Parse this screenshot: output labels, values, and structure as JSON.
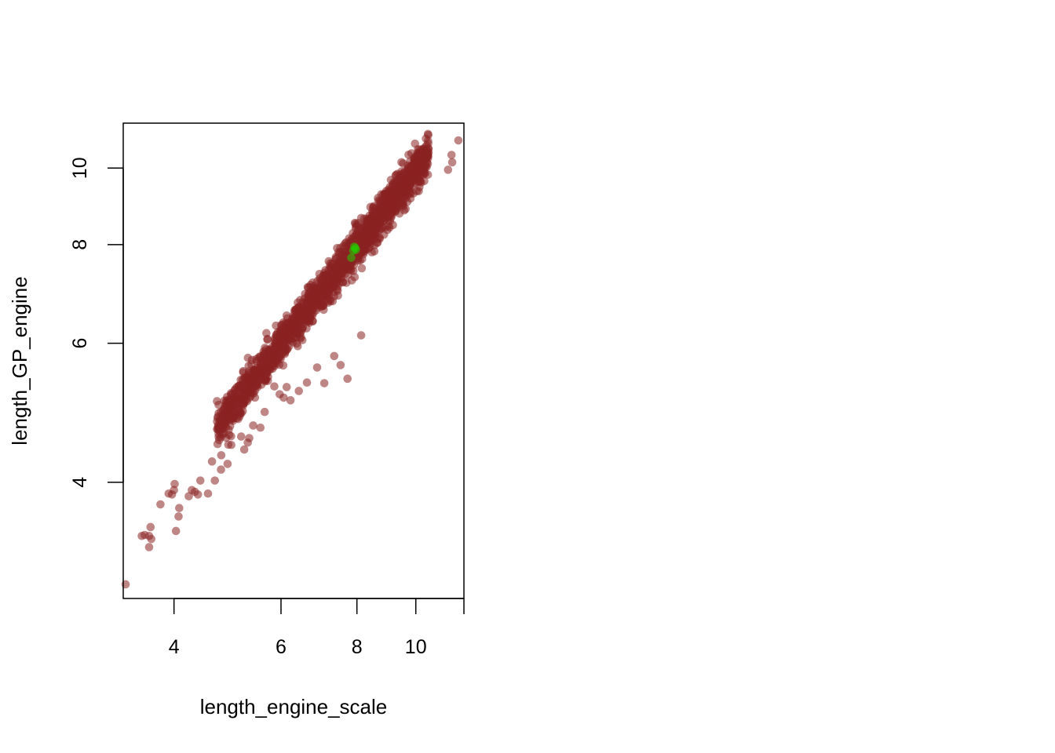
{
  "chart_data": {
    "type": "scatter",
    "title": "",
    "xlabel": "length_engine_scale",
    "ylabel": "length_GP_engine",
    "x_scale": "log",
    "y_scale": "log",
    "xlim": [
      3.3,
      12.0
    ],
    "ylim": [
      2.85,
      11.4
    ],
    "x_ticks": [
      4,
      6,
      8,
      10,
      12
    ],
    "x_tick_labels": [
      "4",
      "6",
      "8",
      "10",
      ""
    ],
    "y_ticks": [
      4,
      6,
      8,
      10
    ],
    "y_tick_labels": [
      "4",
      "6",
      "8",
      "10"
    ],
    "grid": false,
    "legend": "none",
    "colors": {
      "main": "#8b2323",
      "highlight": "#22cc00"
    },
    "cloud": {
      "count": 1800,
      "x_range": [
        4.7,
        10.5
      ],
      "slope": 0.995,
      "offset": 0.005,
      "spread": 0.028
    },
    "series": [
      {
        "color": "#8b2323",
        "x": [
          3.33,
          3.64,
          3.66,
          3.64,
          3.67,
          3.54,
          3.58,
          3.8,
          3.92,
          3.97,
          4.0,
          4.01,
          4.03,
          4.07,
          4.08,
          4.28,
          4.23,
          4.42,
          4.38,
          4.33,
          4.55,
          4.62,
          4.67,
          4.78,
          4.9,
          4.97,
          5.1,
          5.16,
          5.22,
          5.29,
          5.32,
          5.4,
          5.55,
          5.64,
          5.85,
          5.97,
          6.06,
          6.13,
          6.22,
          6.42,
          6.62,
          6.88,
          7.07,
          7.34,
          7.52,
          7.72,
          8.13,
          11.75,
          11.45,
          11.48,
          11.3,
          10.22
        ],
        "y": [
          2.97,
          3.31,
          3.51,
          3.42,
          3.39,
          3.42,
          3.43,
          3.75,
          3.87,
          3.86,
          3.91,
          3.98,
          3.47,
          3.62,
          3.71,
          3.91,
          3.84,
          4.02,
          3.86,
          3.89,
          3.87,
          4.25,
          4.02,
          4.15,
          4.22,
          4.46,
          4.81,
          4.57,
          4.4,
          4.49,
          4.55,
          4.72,
          4.69,
          4.91,
          5.29,
          5.17,
          5.12,
          5.28,
          5.08,
          5.22,
          5.35,
          5.59,
          5.34,
          5.78,
          5.63,
          5.41,
          6.14,
          10.84,
          10.39,
          10.17,
          9.95,
          10.05
        ]
      },
      {
        "color": "#22cc00",
        "x": [
          7.89,
          7.95,
          7.92,
          7.83,
          7.97
        ],
        "y": [
          7.86,
          7.92,
          7.95,
          7.7,
          7.88
        ]
      }
    ]
  }
}
